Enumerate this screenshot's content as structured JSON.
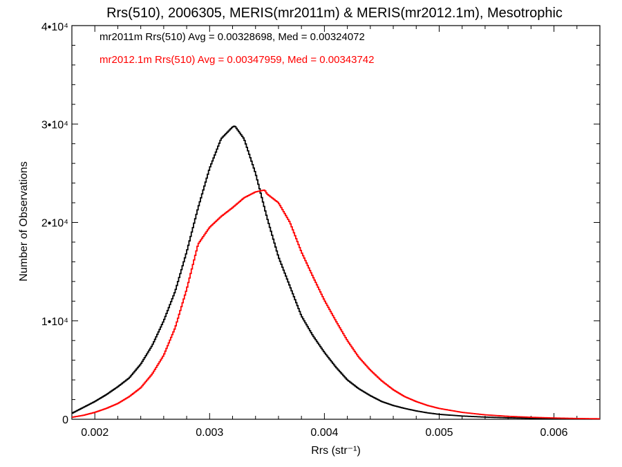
{
  "chart_data": {
    "type": "line",
    "title": "Rrs(510), 2006305, MERIS(mr2011m) & MERIS(mr2012.1m), Mesotrophic",
    "xlabel": "Rrs (str⁻¹)",
    "ylabel": "Number of Observations",
    "xlim": [
      0.0018,
      0.0064
    ],
    "ylim": [
      0,
      40000
    ],
    "grid": false,
    "x_ticks": [
      {
        "value": 0.002,
        "label": "0.002"
      },
      {
        "value": 0.003,
        "label": "0.003"
      },
      {
        "value": 0.004,
        "label": "0.004"
      },
      {
        "value": 0.005,
        "label": "0.005"
      },
      {
        "value": 0.006,
        "label": "0.006"
      }
    ],
    "y_ticks": [
      {
        "value": 0,
        "label": "0"
      },
      {
        "value": 10000,
        "label": "1•10⁴"
      },
      {
        "value": 20000,
        "label": "2•10⁴"
      },
      {
        "value": 30000,
        "label": "3•10⁴"
      },
      {
        "value": 40000,
        "label": "4•10⁴"
      }
    ],
    "legend_placement": "top-left",
    "series": [
      {
        "name": "mr2011m Rrs(510) Avg = 0.00328698, Med = 0.00324072",
        "color": "#000000",
        "x": [
          0.0018,
          0.0019,
          0.002,
          0.0021,
          0.0022,
          0.0023,
          0.0024,
          0.0025,
          0.0026,
          0.0027,
          0.0028,
          0.0029,
          0.003,
          0.0031,
          0.0032,
          0.00322,
          0.0033,
          0.0034,
          0.0035,
          0.0036,
          0.0037,
          0.0038,
          0.0039,
          0.004,
          0.0041,
          0.0042,
          0.0043,
          0.0044,
          0.0045,
          0.0046,
          0.0047,
          0.0048,
          0.0049,
          0.005,
          0.0052,
          0.0054,
          0.0056,
          0.0058,
          0.006,
          0.0062,
          0.0064
        ],
        "y": [
          600,
          1200,
          1800,
          2500,
          3300,
          4200,
          5600,
          7500,
          10000,
          13000,
          17000,
          21500,
          25500,
          28500,
          29700,
          29800,
          28500,
          25000,
          20500,
          16500,
          13500,
          10500,
          8500,
          6800,
          5300,
          4000,
          3100,
          2400,
          1800,
          1400,
          1100,
          850,
          650,
          500,
          330,
          220,
          150,
          100,
          70,
          50,
          40
        ]
      },
      {
        "name": "mr2012.1m Rrs(510) Avg = 0.00347959, Med = 0.00343742",
        "color": "#ff0000",
        "x": [
          0.0018,
          0.0019,
          0.002,
          0.0021,
          0.0022,
          0.0023,
          0.0024,
          0.0025,
          0.0026,
          0.0027,
          0.0028,
          0.0029,
          0.003,
          0.0031,
          0.0032,
          0.0033,
          0.0034,
          0.00348,
          0.0035,
          0.0036,
          0.0037,
          0.0038,
          0.0039,
          0.004,
          0.0041,
          0.0042,
          0.0043,
          0.0044,
          0.0045,
          0.0046,
          0.0047,
          0.0048,
          0.0049,
          0.005,
          0.0052,
          0.0054,
          0.0056,
          0.0058,
          0.006,
          0.0062,
          0.0064
        ],
        "y": [
          200,
          400,
          700,
          1100,
          1600,
          2300,
          3200,
          4600,
          6500,
          9300,
          13200,
          17800,
          19500,
          20600,
          21500,
          22500,
          23100,
          23300,
          22900,
          22000,
          20000,
          17000,
          14500,
          12100,
          10000,
          8000,
          6300,
          5000,
          3900,
          3000,
          2300,
          1800,
          1400,
          1100,
          700,
          450,
          300,
          200,
          130,
          80,
          50
        ]
      }
    ]
  }
}
